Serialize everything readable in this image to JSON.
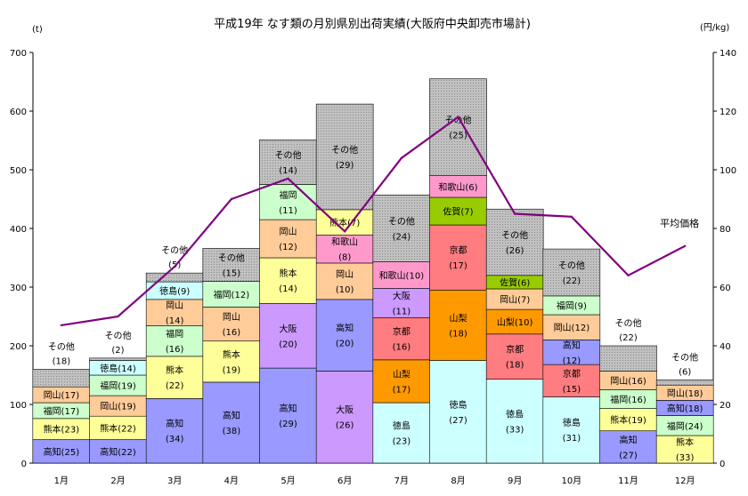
{
  "chart_data": {
    "type": "bar",
    "stacked": true,
    "title": "平成19年 なす類の月別県別出荷実績(大阪府中央卸売市場計)",
    "y_left_unit": "(t)",
    "y_right_unit": "(円/kg)",
    "ylim_left": [
      0,
      700
    ],
    "ylim_right": [
      0,
      140
    ],
    "y_left_ticks": [
      "0",
      "100",
      "200",
      "300",
      "400",
      "500",
      "600",
      "700"
    ],
    "y_right_ticks": [
      "0",
      "20",
      "40",
      "60",
      "80",
      "100",
      "120",
      "140"
    ],
    "grid": false,
    "categories": [
      "1月",
      "2月",
      "3月",
      "4月",
      "5月",
      "6月",
      "7月",
      "8月",
      "9月",
      "10月",
      "11月",
      "12月"
    ],
    "colors": {
      "高知": "#9999ff",
      "熊本": "#ffff99",
      "福岡": "#ccffcc",
      "岡山": "#ffcc99",
      "徳島": "#ccffff",
      "大阪": "#cc99ff",
      "和歌山": "#ff99cc",
      "山梨": "#ff9900",
      "京都": "#ff7c80",
      "佐賀": "#99cc00",
      "その他": "#c0c0c0",
      "line": "#800080"
    },
    "stacks": [
      {
        "month": "1月",
        "segments": [
          {
            "pref": "高知",
            "value": 40,
            "label": "高知(25)"
          },
          {
            "pref": "熊本",
            "value": 36,
            "label": "熊本(23)"
          },
          {
            "pref": "福岡",
            "value": 27,
            "label": "福岡(17)"
          },
          {
            "pref": "岡山",
            "value": 27,
            "label": "岡山(17)"
          },
          {
            "pref": "その他",
            "value": 30,
            "label": "その他",
            "label2": "(18)",
            "outside": true
          }
        ]
      },
      {
        "month": "2月",
        "segments": [
          {
            "pref": "高知",
            "value": 40,
            "label": "高知(22)"
          },
          {
            "pref": "熊本",
            "value": 40,
            "label": "熊本(22)"
          },
          {
            "pref": "岡山",
            "value": 35,
            "label": "岡山(19)"
          },
          {
            "pref": "福岡",
            "value": 35,
            "label": "福岡(19)"
          },
          {
            "pref": "徳島",
            "value": 25,
            "label": "徳島(14)"
          },
          {
            "pref": "その他",
            "value": 4,
            "label": "その他",
            "label2": "(2)",
            "outside": true
          }
        ]
      },
      {
        "month": "3月",
        "segments": [
          {
            "pref": "高知",
            "value": 110,
            "label": "高知",
            "label2": "(34)"
          },
          {
            "pref": "熊本",
            "value": 72,
            "label": "熊本",
            "label2": "(22)"
          },
          {
            "pref": "福岡",
            "value": 52,
            "label": "福岡",
            "label2": "(16)"
          },
          {
            "pref": "岡山",
            "value": 45,
            "label": "岡山",
            "label2": "(14)"
          },
          {
            "pref": "徳島",
            "value": 30,
            "label": "徳島(9)"
          },
          {
            "pref": "その他",
            "value": 15,
            "label": "その他",
            "label2": "(5)",
            "outside": true
          }
        ]
      },
      {
        "month": "4月",
        "segments": [
          {
            "pref": "高知",
            "value": 138,
            "label": "高知",
            "label2": "(38)"
          },
          {
            "pref": "熊本",
            "value": 70,
            "label": "熊本",
            "label2": "(19)"
          },
          {
            "pref": "岡山",
            "value": 58,
            "label": "岡山",
            "label2": "(16)"
          },
          {
            "pref": "福岡",
            "value": 44,
            "label": "福岡(12)"
          },
          {
            "pref": "その他",
            "value": 56,
            "label": "その他",
            "label2": "(15)"
          }
        ]
      },
      {
        "month": "5月",
        "segments": [
          {
            "pref": "高知",
            "value": 162,
            "label": "高知",
            "label2": "(29)"
          },
          {
            "pref": "大阪",
            "value": 110,
            "label": "大阪",
            "label2": "(20)"
          },
          {
            "pref": "熊本",
            "value": 78,
            "label": "熊本",
            "label2": "(14)"
          },
          {
            "pref": "岡山",
            "value": 65,
            "label": "岡山",
            "label2": "(12)"
          },
          {
            "pref": "福岡",
            "value": 60,
            "label": "福岡",
            "label2": "(11)"
          },
          {
            "pref": "その他",
            "value": 76,
            "label": "その他",
            "label2": "(14)"
          }
        ]
      },
      {
        "month": "6月",
        "segments": [
          {
            "pref": "大阪",
            "value": 157,
            "label": "大阪",
            "label2": "(26)"
          },
          {
            "pref": "高知",
            "value": 122,
            "label": "高知",
            "label2": "(20)"
          },
          {
            "pref": "岡山",
            "value": 62,
            "label": "岡山",
            "label2": "(10)"
          },
          {
            "pref": "和歌山",
            "value": 48,
            "label": "和歌山",
            "label2": "(8)"
          },
          {
            "pref": "熊本",
            "value": 43,
            "label": "熊本(7)"
          },
          {
            "pref": "その他",
            "value": 180,
            "label": "その他",
            "label2": "(29)"
          }
        ]
      },
      {
        "month": "7月",
        "segments": [
          {
            "pref": "徳島",
            "value": 103,
            "label": "徳島",
            "label2": "(23)"
          },
          {
            "pref": "山梨",
            "value": 73,
            "label": "山梨",
            "label2": "(17)"
          },
          {
            "pref": "京都",
            "value": 72,
            "label": "京都",
            "label2": "(16)"
          },
          {
            "pref": "大阪",
            "value": 50,
            "label": "大阪",
            "label2": "(11)"
          },
          {
            "pref": "和歌山",
            "value": 45,
            "label": "和歌山(10)"
          },
          {
            "pref": "その他",
            "value": 114,
            "label": "その他",
            "label2": "(24)"
          }
        ]
      },
      {
        "month": "8月",
        "segments": [
          {
            "pref": "徳島",
            "value": 175,
            "label": "徳島",
            "label2": "(27)"
          },
          {
            "pref": "山梨",
            "value": 120,
            "label": "山梨",
            "label2": "(18)"
          },
          {
            "pref": "京都",
            "value": 111,
            "label": "京都",
            "label2": "(17)"
          },
          {
            "pref": "佐賀",
            "value": 47,
            "label": "佐賀(7)"
          },
          {
            "pref": "和歌山",
            "value": 37,
            "label": "和歌山(6)"
          },
          {
            "pref": "その他",
            "value": 165,
            "label": "その他",
            "label2": "(25)"
          }
        ]
      },
      {
        "month": "9月",
        "segments": [
          {
            "pref": "徳島",
            "value": 143,
            "label": "徳島",
            "label2": "(33)"
          },
          {
            "pref": "京都",
            "value": 77,
            "label": "京都",
            "label2": "(18)"
          },
          {
            "pref": "山梨",
            "value": 42,
            "label": "山梨(10)"
          },
          {
            "pref": "岡山",
            "value": 35,
            "label": "岡山(7)"
          },
          {
            "pref": "佐賀",
            "value": 23,
            "label": "佐賀(6)"
          },
          {
            "pref": "その他",
            "value": 113,
            "label": "その他",
            "label2": "(26)"
          }
        ]
      },
      {
        "month": "10月",
        "segments": [
          {
            "pref": "徳島",
            "value": 113,
            "label": "徳島",
            "label2": "(31)"
          },
          {
            "pref": "京都",
            "value": 55,
            "label": "京都",
            "label2": "(15)"
          },
          {
            "pref": "高知",
            "value": 42,
            "label": "高知",
            "label2": "(12)"
          },
          {
            "pref": "岡山",
            "value": 43,
            "label": "岡山(12)"
          },
          {
            "pref": "福岡",
            "value": 32,
            "label": "福岡(9)"
          },
          {
            "pref": "その他",
            "value": 80,
            "label": "その他",
            "label2": "(22)"
          }
        ]
      },
      {
        "month": "11月",
        "segments": [
          {
            "pref": "高知",
            "value": 55,
            "label": "高知",
            "label2": "(27)"
          },
          {
            "pref": "熊本",
            "value": 38,
            "label": "熊本(19)"
          },
          {
            "pref": "福岡",
            "value": 32,
            "label": "福岡(16)"
          },
          {
            "pref": "岡山",
            "value": 32,
            "label": "岡山(16)"
          },
          {
            "pref": "その他",
            "value": 43,
            "label": "その他",
            "label2": "(22)",
            "outside": true
          }
        ]
      },
      {
        "month": "12月",
        "segments": [
          {
            "pref": "熊本",
            "value": 47,
            "label": "熊本",
            "label2": "(33)"
          },
          {
            "pref": "福岡",
            "value": 34,
            "label": "福岡(24)"
          },
          {
            "pref": "高知",
            "value": 26,
            "label": "高知(18)"
          },
          {
            "pref": "岡山",
            "value": 26,
            "label": "岡山(18)"
          },
          {
            "pref": "その他",
            "value": 9,
            "label": "その他",
            "label2": "(6)",
            "outside": true
          }
        ]
      }
    ],
    "line_series": {
      "name": "平均価格",
      "axis": "right",
      "values": [
        47,
        50,
        67,
        90,
        97,
        79,
        104,
        118,
        85,
        84,
        64,
        74
      ]
    }
  }
}
